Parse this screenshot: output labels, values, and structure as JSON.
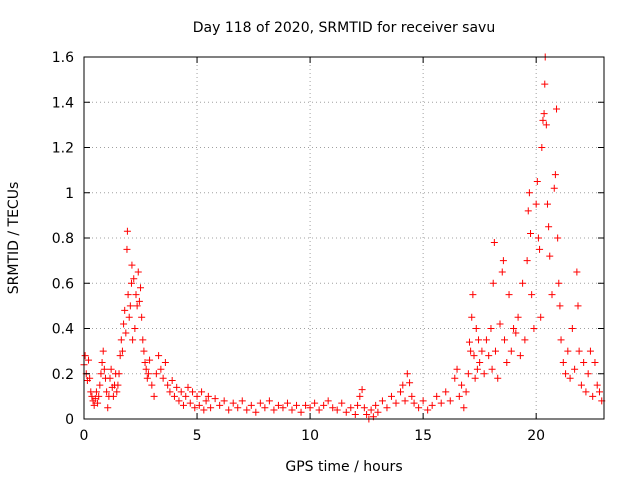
{
  "chart_data": {
    "type": "scatter",
    "title": "Day 118 of 2020, SRMTID for receiver savu",
    "xlabel": "GPS time / hours",
    "ylabel": "SRMTID / TECUs",
    "xlim": [
      0,
      23
    ],
    "ylim": [
      0,
      1.6
    ],
    "grid": true,
    "marker": "+",
    "colors": {
      "marker": "#ff0000",
      "grid": "#a0a0a0",
      "axis": "#000000"
    },
    "x_ticks": [
      {
        "value": 0,
        "label": "0"
      },
      {
        "value": 5,
        "label": "5"
      },
      {
        "value": 10,
        "label": "10"
      },
      {
        "value": 15,
        "label": "15"
      },
      {
        "value": 20,
        "label": "20"
      }
    ],
    "y_ticks": [
      {
        "value": 0,
        "label": "0"
      },
      {
        "value": 0.2,
        "label": "0.2"
      },
      {
        "value": 0.4,
        "label": "0.4"
      },
      {
        "value": 0.6,
        "label": "0.6"
      },
      {
        "value": 0.8,
        "label": "0.8"
      },
      {
        "value": 1.0,
        "label": "1"
      },
      {
        "value": 1.2,
        "label": "1.2"
      },
      {
        "value": 1.4,
        "label": "1.4"
      },
      {
        "value": 1.6,
        "label": "1.6"
      }
    ],
    "series": [
      {
        "name": "SRMTID",
        "points": [
          [
            0.0,
            0.24
          ],
          [
            0.05,
            0.28
          ],
          [
            0.1,
            0.2
          ],
          [
            0.15,
            0.17
          ],
          [
            0.2,
            0.26
          ],
          [
            0.25,
            0.18
          ],
          [
            0.3,
            0.12
          ],
          [
            0.35,
            0.1
          ],
          [
            0.4,
            0.08
          ],
          [
            0.45,
            0.06
          ],
          [
            0.5,
            0.09
          ],
          [
            0.55,
            0.12
          ],
          [
            0.6,
            0.07
          ],
          [
            0.65,
            0.1
          ],
          [
            0.7,
            0.15
          ],
          [
            0.75,
            0.2
          ],
          [
            0.8,
            0.25
          ],
          [
            0.85,
            0.3
          ],
          [
            0.9,
            0.22
          ],
          [
            0.95,
            0.18
          ],
          [
            1.0,
            0.12
          ],
          [
            1.05,
            0.05
          ],
          [
            1.1,
            0.1
          ],
          [
            1.15,
            0.18
          ],
          [
            1.2,
            0.22
          ],
          [
            1.25,
            0.14
          ],
          [
            1.3,
            0.1
          ],
          [
            1.35,
            0.15
          ],
          [
            1.4,
            0.2
          ],
          [
            1.45,
            0.12
          ],
          [
            1.5,
            0.15
          ],
          [
            1.55,
            0.2
          ],
          [
            1.6,
            0.28
          ],
          [
            1.65,
            0.35
          ],
          [
            1.7,
            0.3
          ],
          [
            1.75,
            0.42
          ],
          [
            1.8,
            0.48
          ],
          [
            1.85,
            0.38
          ],
          [
            1.9,
            0.75
          ],
          [
            1.92,
            0.83
          ],
          [
            1.95,
            0.55
          ],
          [
            2.0,
            0.45
          ],
          [
            2.05,
            0.5
          ],
          [
            2.1,
            0.6
          ],
          [
            2.12,
            0.68
          ],
          [
            2.15,
            0.35
          ],
          [
            2.2,
            0.62
          ],
          [
            2.25,
            0.4
          ],
          [
            2.3,
            0.55
          ],
          [
            2.35,
            0.5
          ],
          [
            2.4,
            0.65
          ],
          [
            2.45,
            0.52
          ],
          [
            2.5,
            0.58
          ],
          [
            2.55,
            0.45
          ],
          [
            2.6,
            0.35
          ],
          [
            2.65,
            0.3
          ],
          [
            2.7,
            0.25
          ],
          [
            2.75,
            0.22
          ],
          [
            2.8,
            0.18
          ],
          [
            2.85,
            0.2
          ],
          [
            2.9,
            0.26
          ],
          [
            3.0,
            0.15
          ],
          [
            3.1,
            0.1
          ],
          [
            3.2,
            0.2
          ],
          [
            3.3,
            0.28
          ],
          [
            3.4,
            0.22
          ],
          [
            3.5,
            0.18
          ],
          [
            3.6,
            0.25
          ],
          [
            3.7,
            0.15
          ],
          [
            3.8,
            0.12
          ],
          [
            3.9,
            0.17
          ],
          [
            4.0,
            0.1
          ],
          [
            4.1,
            0.14
          ],
          [
            4.2,
            0.08
          ],
          [
            4.3,
            0.12
          ],
          [
            4.4,
            0.06
          ],
          [
            4.5,
            0.1
          ],
          [
            4.6,
            0.14
          ],
          [
            4.7,
            0.07
          ],
          [
            4.8,
            0.12
          ],
          [
            4.9,
            0.05
          ],
          [
            5.0,
            0.1
          ],
          [
            5.1,
            0.06
          ],
          [
            5.2,
            0.12
          ],
          [
            5.3,
            0.04
          ],
          [
            5.4,
            0.08
          ],
          [
            5.5,
            0.1
          ],
          [
            5.6,
            0.05
          ],
          [
            5.8,
            0.09
          ],
          [
            6.0,
            0.06
          ],
          [
            6.2,
            0.08
          ],
          [
            6.4,
            0.04
          ],
          [
            6.6,
            0.07
          ],
          [
            6.8,
            0.05
          ],
          [
            7.0,
            0.08
          ],
          [
            7.2,
            0.04
          ],
          [
            7.4,
            0.06
          ],
          [
            7.6,
            0.03
          ],
          [
            7.8,
            0.07
          ],
          [
            8.0,
            0.05
          ],
          [
            8.2,
            0.08
          ],
          [
            8.4,
            0.04
          ],
          [
            8.6,
            0.06
          ],
          [
            8.8,
            0.05
          ],
          [
            9.0,
            0.07
          ],
          [
            9.2,
            0.04
          ],
          [
            9.4,
            0.06
          ],
          [
            9.6,
            0.03
          ],
          [
            9.8,
            0.06
          ],
          [
            10.0,
            0.05
          ],
          [
            10.2,
            0.07
          ],
          [
            10.4,
            0.04
          ],
          [
            10.6,
            0.06
          ],
          [
            10.8,
            0.08
          ],
          [
            11.0,
            0.05
          ],
          [
            11.2,
            0.04
          ],
          [
            11.4,
            0.07
          ],
          [
            11.6,
            0.03
          ],
          [
            11.8,
            0.05
          ],
          [
            12.0,
            0.02
          ],
          [
            12.1,
            0.06
          ],
          [
            12.2,
            0.1
          ],
          [
            12.3,
            0.13
          ],
          [
            12.4,
            0.05
          ],
          [
            12.5,
            0.02
          ],
          [
            12.6,
            0.0
          ],
          [
            12.7,
            0.04
          ],
          [
            12.8,
            0.01
          ],
          [
            12.9,
            0.06
          ],
          [
            13.0,
            0.03
          ],
          [
            13.2,
            0.08
          ],
          [
            13.4,
            0.05
          ],
          [
            13.6,
            0.1
          ],
          [
            13.8,
            0.07
          ],
          [
            14.0,
            0.12
          ],
          [
            14.1,
            0.15
          ],
          [
            14.2,
            0.08
          ],
          [
            14.3,
            0.2
          ],
          [
            14.4,
            0.16
          ],
          [
            14.5,
            0.1
          ],
          [
            14.6,
            0.07
          ],
          [
            14.8,
            0.05
          ],
          [
            15.0,
            0.08
          ],
          [
            15.2,
            0.04
          ],
          [
            15.4,
            0.06
          ],
          [
            15.6,
            0.1
          ],
          [
            15.8,
            0.07
          ],
          [
            16.0,
            0.12
          ],
          [
            16.2,
            0.08
          ],
          [
            16.4,
            0.18
          ],
          [
            16.5,
            0.22
          ],
          [
            16.6,
            0.1
          ],
          [
            16.7,
            0.15
          ],
          [
            16.8,
            0.05
          ],
          [
            16.9,
            0.12
          ],
          [
            17.0,
            0.2
          ],
          [
            17.05,
            0.34
          ],
          [
            17.1,
            0.3
          ],
          [
            17.15,
            0.45
          ],
          [
            17.2,
            0.55
          ],
          [
            17.25,
            0.28
          ],
          [
            17.3,
            0.18
          ],
          [
            17.35,
            0.4
          ],
          [
            17.4,
            0.22
          ],
          [
            17.45,
            0.35
          ],
          [
            17.5,
            0.25
          ],
          [
            17.6,
            0.3
          ],
          [
            17.7,
            0.2
          ],
          [
            17.8,
            0.35
          ],
          [
            17.9,
            0.28
          ],
          [
            18.0,
            0.4
          ],
          [
            18.05,
            0.22
          ],
          [
            18.1,
            0.6
          ],
          [
            18.15,
            0.78
          ],
          [
            18.2,
            0.3
          ],
          [
            18.3,
            0.18
          ],
          [
            18.4,
            0.42
          ],
          [
            18.5,
            0.65
          ],
          [
            18.55,
            0.7
          ],
          [
            18.6,
            0.35
          ],
          [
            18.7,
            0.25
          ],
          [
            18.8,
            0.55
          ],
          [
            18.9,
            0.3
          ],
          [
            19.0,
            0.4
          ],
          [
            19.1,
            0.38
          ],
          [
            19.2,
            0.45
          ],
          [
            19.3,
            0.28
          ],
          [
            19.4,
            0.6
          ],
          [
            19.5,
            0.35
          ],
          [
            19.6,
            0.7
          ],
          [
            19.65,
            0.92
          ],
          [
            19.7,
            1.0
          ],
          [
            19.75,
            0.82
          ],
          [
            19.8,
            0.55
          ],
          [
            19.9,
            0.4
          ],
          [
            20.0,
            0.95
          ],
          [
            20.05,
            1.05
          ],
          [
            20.1,
            0.8
          ],
          [
            20.15,
            0.75
          ],
          [
            20.2,
            0.45
          ],
          [
            20.25,
            1.2
          ],
          [
            20.3,
            1.32
          ],
          [
            20.35,
            1.35
          ],
          [
            20.38,
            1.48
          ],
          [
            20.4,
            1.6
          ],
          [
            20.45,
            1.3
          ],
          [
            20.5,
            0.95
          ],
          [
            20.55,
            0.85
          ],
          [
            20.6,
            0.72
          ],
          [
            20.7,
            0.55
          ],
          [
            20.8,
            1.02
          ],
          [
            20.85,
            1.08
          ],
          [
            20.9,
            1.37
          ],
          [
            20.95,
            0.8
          ],
          [
            21.0,
            0.6
          ],
          [
            21.05,
            0.5
          ],
          [
            21.1,
            0.35
          ],
          [
            21.2,
            0.25
          ],
          [
            21.3,
            0.2
          ],
          [
            21.4,
            0.3
          ],
          [
            21.5,
            0.18
          ],
          [
            21.6,
            0.4
          ],
          [
            21.7,
            0.22
          ],
          [
            21.8,
            0.65
          ],
          [
            21.85,
            0.5
          ],
          [
            21.9,
            0.3
          ],
          [
            22.0,
            0.15
          ],
          [
            22.1,
            0.25
          ],
          [
            22.2,
            0.12
          ],
          [
            22.3,
            0.2
          ],
          [
            22.4,
            0.3
          ],
          [
            22.5,
            0.1
          ],
          [
            22.6,
            0.25
          ],
          [
            22.7,
            0.15
          ],
          [
            22.8,
            0.12
          ],
          [
            22.9,
            0.08
          ]
        ]
      }
    ]
  }
}
